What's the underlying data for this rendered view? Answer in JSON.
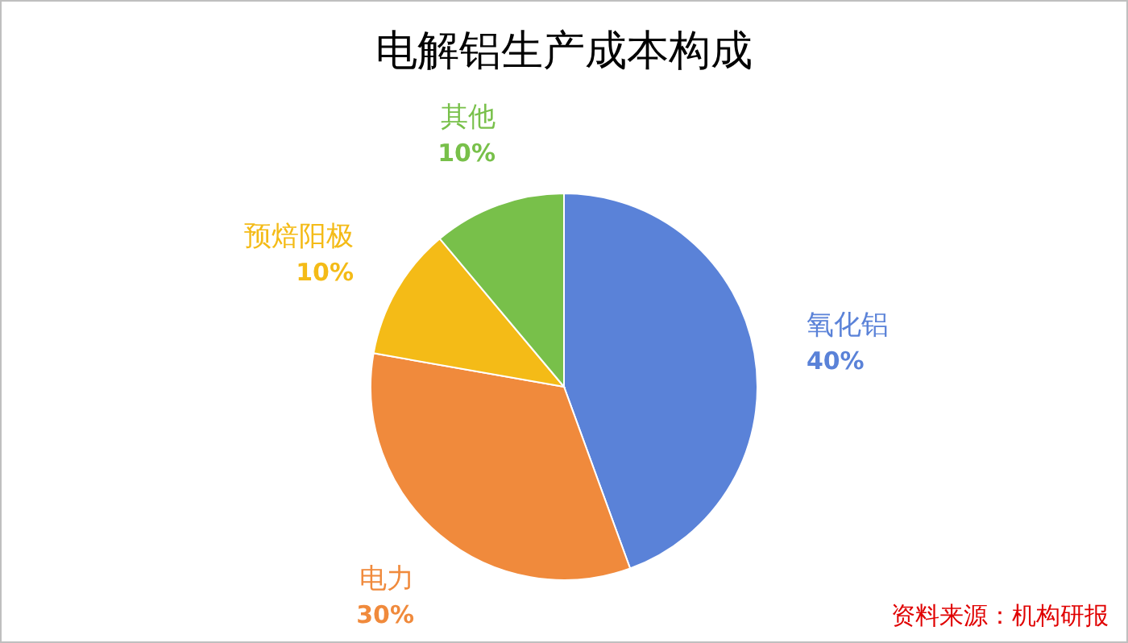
{
  "chart_data": {
    "type": "pie",
    "title": "电解铝生产成本构成",
    "categories": [
      "氧化铝",
      "电力",
      "预焙阳极",
      "其他"
    ],
    "values": [
      40,
      30,
      10,
      10
    ],
    "value_labels": [
      "40%",
      "30%",
      "10%",
      "10%"
    ],
    "colors": [
      "#5a82d8",
      "#f08a3c",
      "#f4bb17",
      "#78c04a"
    ],
    "annotations": [
      "资料来源：机构研报"
    ]
  }
}
